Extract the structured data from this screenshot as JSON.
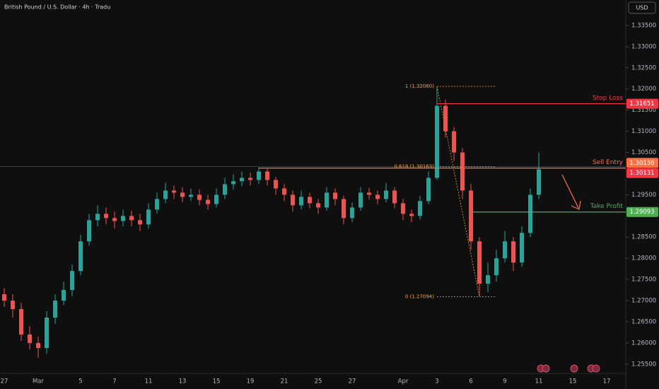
{
  "chart_data": {
    "type": "candlestick",
    "title": "British Pound / U.S. Dollar · 4h · Tradu",
    "currency": "USD",
    "categories": [
      "27",
      null,
      null,
      null,
      "Mar",
      null,
      null,
      null,
      null,
      "5",
      null,
      null,
      null,
      "7",
      null,
      null,
      null,
      "11",
      null,
      null,
      null,
      "13",
      null,
      null,
      null,
      "15",
      null,
      null,
      null,
      "19",
      null,
      null,
      null,
      "21",
      null,
      null,
      null,
      "25",
      null,
      null,
      null,
      "27",
      null,
      null,
      null,
      null,
      null,
      "Apr",
      null,
      null,
      null,
      "3",
      null,
      null,
      null,
      "6",
      null,
      null,
      null,
      "9",
      null,
      null,
      null,
      "11",
      null,
      null,
      null,
      "15",
      null,
      null,
      null,
      "17"
    ],
    "open": [
      1.2715,
      1.27,
      1.268,
      1.262,
      1.26,
      1.2588,
      1.266,
      1.27,
      1.2725,
      1.277,
      1.284,
      1.289,
      1.2905,
      1.2895,
      1.2888,
      1.29,
      1.289,
      1.288,
      1.2915,
      1.294,
      1.296,
      1.2955,
      1.2945,
      1.295,
      1.2938,
      1.2928,
      1.295,
      1.2975,
      1.2982,
      1.299,
      1.2985,
      1.3005,
      1.2985,
      1.2965,
      1.295,
      1.2925,
      1.2945,
      1.293,
      1.292,
      1.2955,
      1.294,
      1.2895,
      1.292,
      1.2955,
      1.295,
      1.294,
      1.296,
      1.293,
      1.2905,
      1.29,
      1.2935,
      1.299,
      1.316,
      1.31,
      1.305,
      1.296,
      1.284,
      1.274,
      1.276,
      1.28,
      1.284,
      1.279,
      1.286,
      1.295,
      null,
      null,
      null,
      null,
      null,
      null,
      null,
      null
    ],
    "high": [
      1.273,
      1.2715,
      1.2695,
      1.264,
      1.2615,
      1.2675,
      1.2715,
      1.2745,
      1.2785,
      1.2855,
      1.2905,
      1.2925,
      1.292,
      1.291,
      1.2915,
      1.2912,
      1.2905,
      1.293,
      1.2955,
      1.2978,
      1.2972,
      1.2968,
      1.2965,
      1.2962,
      1.295,
      1.2965,
      1.299,
      1.2998,
      1.3005,
      1.3002,
      1.3015,
      1.3012,
      1.2992,
      1.2975,
      1.296,
      1.296,
      1.2955,
      1.294,
      1.2968,
      1.2965,
      1.2948,
      1.2932,
      1.2968,
      1.2966,
      1.296,
      1.2978,
      1.2968,
      1.294,
      1.2915,
      1.2948,
      1.3005,
      1.3206,
      1.3175,
      1.311,
      1.306,
      1.2975,
      1.285,
      1.279,
      1.282,
      1.2865,
      1.285,
      1.2875,
      1.2965,
      1.305,
      null,
      null,
      null,
      null,
      null,
      null,
      null,
      null
    ],
    "low": [
      1.2685,
      1.266,
      1.2605,
      1.2585,
      1.2565,
      1.2575,
      1.2645,
      1.269,
      1.271,
      1.276,
      1.283,
      1.2875,
      1.288,
      1.287,
      1.2875,
      1.2876,
      1.2865,
      1.287,
      1.2905,
      1.293,
      1.294,
      1.2932,
      1.2935,
      1.2925,
      1.2915,
      1.292,
      1.294,
      1.2962,
      1.297,
      1.2972,
      1.2975,
      1.2972,
      1.295,
      1.2935,
      1.291,
      1.2915,
      1.2918,
      1.2905,
      1.2912,
      1.2925,
      1.288,
      1.2885,
      1.2912,
      1.2938,
      1.2928,
      1.2932,
      1.2918,
      1.289,
      1.2885,
      1.2892,
      1.2928,
      1.2985,
      1.3085,
      1.303,
      1.294,
      1.282,
      1.2709,
      1.272,
      1.2745,
      1.279,
      1.277,
      1.278,
      1.285,
      1.294,
      null,
      null,
      null,
      null,
      null,
      null,
      null,
      null
    ],
    "close": [
      1.27,
      1.268,
      1.262,
      1.26,
      1.2588,
      1.266,
      1.27,
      1.2725,
      1.277,
      1.284,
      1.289,
      1.2905,
      1.2895,
      1.2888,
      1.29,
      1.289,
      1.288,
      1.2915,
      1.294,
      1.296,
      1.2955,
      1.2945,
      1.295,
      1.2938,
      1.2928,
      1.295,
      1.2975,
      1.2982,
      1.299,
      1.2985,
      1.3005,
      1.2985,
      1.2965,
      1.295,
      1.2925,
      1.2945,
      1.293,
      1.292,
      1.2955,
      1.294,
      1.2895,
      1.292,
      1.2955,
      1.295,
      1.294,
      1.296,
      1.293,
      1.2905,
      1.29,
      1.2935,
      1.299,
      1.316,
      1.31,
      1.305,
      1.296,
      1.284,
      1.274,
      1.276,
      1.28,
      1.284,
      1.279,
      1.286,
      1.295,
      1.301,
      null,
      null,
      null,
      null,
      null,
      null,
      null,
      null
    ],
    "up_color": "#26a69a",
    "down_color": "#ef5350",
    "ylim": [
      1.2528,
      1.341
    ],
    "yticks": [
      {
        "value": 1.335,
        "label": "1.33500"
      },
      {
        "value": 1.33,
        "label": "1.33000"
      },
      {
        "value": 1.325,
        "label": "1.32500"
      },
      {
        "value": 1.32,
        "label": "1.32000"
      },
      {
        "value": 1.315,
        "label": "1.31500"
      },
      {
        "value": 1.31,
        "label": "1.31000"
      },
      {
        "value": 1.305,
        "label": "1.30500"
      },
      {
        "value": 1.295,
        "label": "1.29500"
      },
      {
        "value": 1.285,
        "label": "1.28500"
      },
      {
        "value": 1.28,
        "label": "1.28000"
      },
      {
        "value": 1.275,
        "label": "1.27500"
      },
      {
        "value": 1.27,
        "label": "1.27000"
      },
      {
        "value": 1.265,
        "label": "1.26500"
      },
      {
        "value": 1.26,
        "label": "1.26000"
      },
      {
        "value": 1.255,
        "label": "1.25500"
      }
    ],
    "levels": [
      {
        "name": "Stop Loss",
        "value": 1.31651,
        "label": "1.31651",
        "color": "#f23645",
        "from": 51
      },
      {
        "name": "Sell Entry",
        "value": 1.30131,
        "label": "1.30131",
        "color": "#ff7043",
        "from": 30
      },
      {
        "name": "Take Profit",
        "value": 1.29093,
        "label": "1.29093",
        "color": "#4caf50",
        "from": 55
      }
    ],
    "last_price": {
      "value": 1.30136,
      "label": "1.30136",
      "color": "#ff7043"
    },
    "fib": [
      {
        "value": 1.3206,
        "label": "1 (1.32060)"
      },
      {
        "value": 1.30163,
        "label": "0.618 (1.30163)"
      },
      {
        "value": 1.27094,
        "label": "0 (1.27094)"
      }
    ],
    "fib_color": "#f7a13b",
    "fib_from": 51,
    "fib_to": 56
  }
}
